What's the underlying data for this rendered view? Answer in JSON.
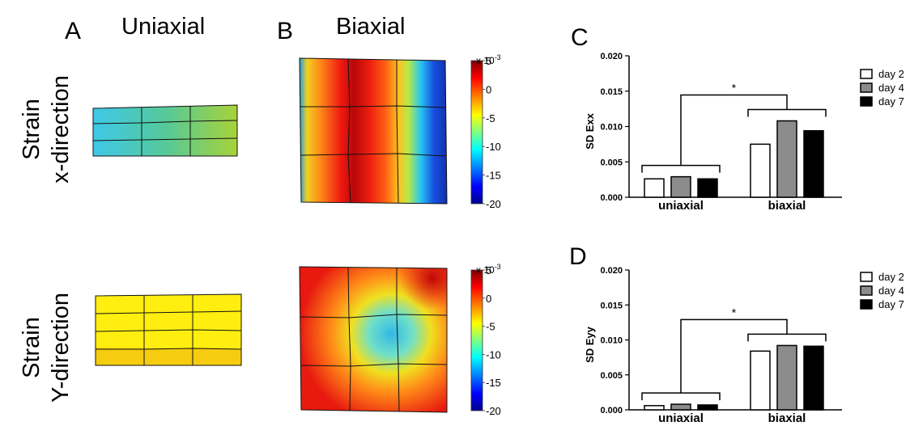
{
  "panels": {
    "A": {
      "letter": "A",
      "title": "Uniaxial"
    },
    "B": {
      "letter": "B",
      "title": "Biaxial"
    },
    "C": {
      "letter": "C"
    },
    "D": {
      "letter": "D"
    }
  },
  "row_labels": {
    "x": {
      "line1": "Strain",
      "line2": "x-direction"
    },
    "y": {
      "line1": "Strain",
      "line2": "Y-direction"
    }
  },
  "colorbar": {
    "scale_label": "x 10",
    "exponent": "-3",
    "ticks": [
      "5",
      "0",
      "-5",
      "-10",
      "-15",
      "-20"
    ],
    "range": [
      -20,
      5
    ],
    "colormap": [
      "#00008f",
      "#0000ff",
      "#00ffff",
      "#ffff00",
      "#ff0000",
      "#800000"
    ]
  },
  "chart_data": [
    {
      "type": "bar",
      "panel": "C",
      "ylabel": "SD Exx",
      "categories": [
        "uniaxial",
        "biaxial"
      ],
      "yticks": [
        "0.000",
        "0.005",
        "0.010",
        "0.015",
        "0.020"
      ],
      "ylim": [
        0,
        0.02
      ],
      "grid": false,
      "legend_position": "top-right",
      "series": [
        {
          "name": "day 2",
          "color": "#ffffff",
          "values": [
            0.0026,
            0.0075
          ]
        },
        {
          "name": "day 4",
          "color": "#8c8c8c",
          "values": [
            0.0029,
            0.0108
          ]
        },
        {
          "name": "day 7",
          "color": "#000000",
          "values": [
            0.0026,
            0.0094
          ]
        }
      ],
      "significance": "*"
    },
    {
      "type": "bar",
      "panel": "D",
      "ylabel": "SD Eyy",
      "categories": [
        "uniaxial",
        "biaxial"
      ],
      "yticks": [
        "0.000",
        "0.005",
        "0.010",
        "0.015",
        "0.020"
      ],
      "ylim": [
        0,
        0.02
      ],
      "grid": false,
      "legend_position": "top-right",
      "series": [
        {
          "name": "day 2",
          "color": "#ffffff",
          "values": [
            0.0006,
            0.0084
          ]
        },
        {
          "name": "day 4",
          "color": "#8c8c8c",
          "values": [
            0.0008,
            0.0092
          ]
        },
        {
          "name": "day 7",
          "color": "#000000",
          "values": [
            0.0007,
            0.0091
          ]
        }
      ],
      "significance": "*"
    }
  ]
}
